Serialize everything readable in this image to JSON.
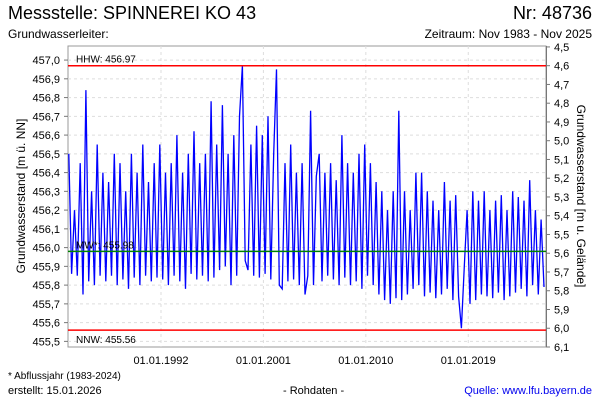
{
  "header": {
    "title": "Messstelle: SPINNEREI KO 43",
    "number": "Nr: 48736",
    "aquifer": "Grundwasserleiter:",
    "period": "Zeitraum: Nov 1983 - Nov 2025"
  },
  "footer": {
    "footnote": "* Abflussjahr (1983-2024)",
    "created": "erstellt:  15.01.2026",
    "raw_data": "- Rohdaten -",
    "source": "Quelle: www.lfu.bayern.de"
  },
  "colors": {
    "series": "#0000ff",
    "extreme_lines": "#ff0000",
    "mean_line": "#008000",
    "source_link": "#0000ee"
  },
  "chart_data": {
    "type": "line",
    "ylabel": "Grundwasserstand [m ü. NN]",
    "ylabel_right": "Grundwasserstand [m u. Gelände]",
    "ylim": [
      455.47,
      457.075
    ],
    "ylim_right": [
      6.1,
      4.5
    ],
    "ground_level": 461.57,
    "xlim": [
      1983.83,
      2025.83
    ],
    "y_ticks": [
      "457,0",
      "456,9",
      "456,8",
      "456,7",
      "456,6",
      "456,5",
      "456,4",
      "456,3",
      "456,2",
      "456,1",
      "456,0",
      "455,9",
      "455,8",
      "455,7",
      "455,6",
      "455,5"
    ],
    "y_tick_values": [
      457.0,
      456.9,
      456.8,
      456.7,
      456.6,
      456.5,
      456.4,
      456.3,
      456.2,
      456.1,
      456.0,
      455.9,
      455.8,
      455.7,
      455.6,
      455.5
    ],
    "y_ticks_right": [
      "4,5",
      "4,6",
      "4,7",
      "4,8",
      "4,9",
      "5,0",
      "5,1",
      "5,2",
      "5,3",
      "5,4",
      "5,5",
      "5,6",
      "5,7",
      "5,8",
      "5,9",
      "6,0",
      "6,1"
    ],
    "y_tick_values_right": [
      4.5,
      4.6,
      4.7,
      4.8,
      4.9,
      5.0,
      5.1,
      5.2,
      5.3,
      5.4,
      5.5,
      5.6,
      5.7,
      5.8,
      5.9,
      6.0,
      6.1
    ],
    "x_ticks": [
      "01.01.1992",
      "01.01.2001",
      "01.01.2010",
      "01.01.2019"
    ],
    "x_tick_values": [
      1992.0,
      2001.0,
      2010.0,
      2019.0
    ],
    "reference_lines": [
      {
        "label": "HHW: 456.97",
        "value": 456.97,
        "color": "#ff0000"
      },
      {
        "label": "MW*: 455.98",
        "value": 455.98,
        "color": "#008000"
      },
      {
        "label": "NNW: 455.56",
        "value": 455.56,
        "color": "#ff0000"
      }
    ],
    "series": [
      {
        "name": "Grundwasserstand",
        "x_start": 1983.9,
        "x_step": 0.25,
        "values": [
          456.5,
          455.86,
          456.2,
          455.85,
          456.45,
          455.75,
          456.84,
          455.82,
          456.3,
          455.8,
          456.55,
          455.85,
          456.4,
          455.82,
          456.35,
          455.85,
          456.5,
          455.8,
          456.45,
          455.83,
          456.3,
          455.78,
          456.5,
          455.84,
          456.4,
          455.8,
          456.55,
          455.85,
          456.35,
          455.82,
          456.45,
          455.84,
          456.55,
          455.83,
          456.4,
          455.8,
          456.45,
          455.85,
          456.6,
          455.82,
          456.4,
          455.78,
          456.5,
          455.86,
          456.62,
          455.83,
          456.45,
          455.85,
          456.5,
          455.82,
          456.78,
          455.84,
          456.55,
          455.88,
          456.76,
          455.9,
          456.5,
          455.8,
          456.6,
          455.85,
          456.7,
          456.97,
          455.93,
          455.88,
          456.55,
          455.85,
          456.65,
          455.84,
          456.6,
          455.86,
          456.7,
          455.83,
          456.5,
          456.95,
          455.8,
          455.78,
          456.45,
          455.82,
          456.55,
          455.83,
          456.4,
          455.8,
          456.45,
          455.75,
          455.85,
          456.73,
          455.8,
          456.38,
          456.5,
          455.82,
          456.4,
          455.85,
          456.45,
          455.83,
          456.36,
          455.8,
          456.6,
          455.84,
          456.45,
          455.8,
          456.4,
          455.82,
          456.5,
          455.78,
          456.55,
          455.85,
          456.45,
          455.8,
          456.35,
          455.75,
          456.3,
          455.72,
          456.2,
          455.7,
          456.3,
          455.73,
          456.73,
          455.72,
          456.3,
          455.75,
          456.2,
          455.78,
          456.4,
          455.8,
          456.4,
          455.74,
          456.3,
          455.76,
          456.25,
          455.73,
          456.2,
          455.75,
          456.35,
          455.78,
          456.25,
          455.72,
          456.28,
          455.74,
          455.57,
          455.9,
          456.2,
          455.7,
          456.3,
          455.72,
          456.25,
          455.75,
          456.3,
          455.74,
          456.2,
          455.73,
          456.25,
          455.76,
          456.28,
          455.72,
          456.2,
          455.74,
          456.3,
          455.76,
          456.27,
          455.78,
          456.25,
          455.74,
          456.36,
          455.8,
          456.2,
          455.75,
          456.15,
          455.79
        ]
      }
    ]
  }
}
